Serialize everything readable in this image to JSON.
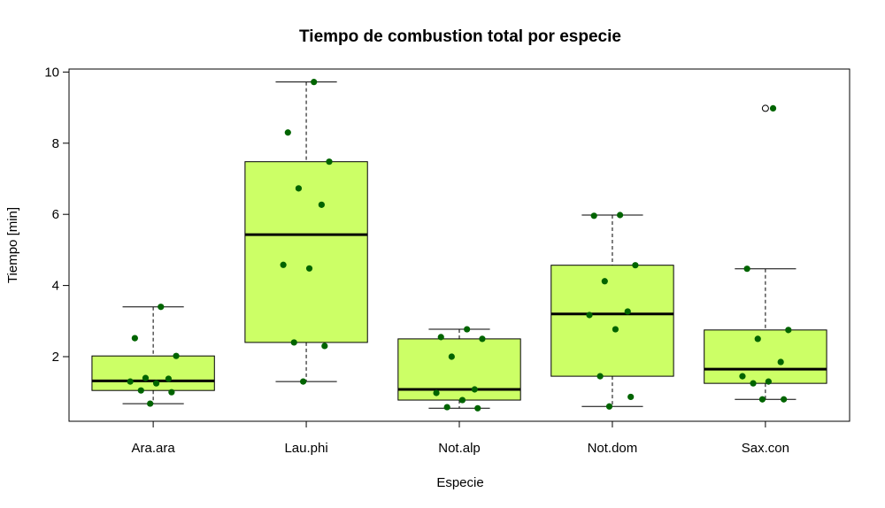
{
  "chart_data": {
    "type": "box",
    "title": "Tiempo de combustion total por especie",
    "xlabel": "Especie",
    "ylabel": "Tiempo [min]",
    "ylim": [
      0.2,
      10.1
    ],
    "yticks": [
      2,
      4,
      6,
      8,
      10
    ],
    "grid": false,
    "legend": "none",
    "colors": {
      "box_fill": "#ccff66",
      "points": "#006400",
      "median": "#000000",
      "outline": "#000000"
    },
    "categories": [
      "Ara.ara",
      "Lau.phi",
      "Not.alp",
      "Not.dom",
      "Sax.con"
    ],
    "boxes": [
      {
        "category": "Ara.ara",
        "whisker_low": 0.68,
        "q1": 1.05,
        "median": 1.32,
        "q3": 2.02,
        "whisker_high": 3.4,
        "outliers": []
      },
      {
        "category": "Lau.phi",
        "whisker_low": 1.3,
        "q1": 2.4,
        "median": 5.43,
        "q3": 7.48,
        "whisker_high": 9.72,
        "outliers": []
      },
      {
        "category": "Not.alp",
        "whisker_low": 0.55,
        "q1": 0.78,
        "median": 1.08,
        "q3": 2.5,
        "whisker_high": 2.77,
        "outliers": []
      },
      {
        "category": "Not.dom",
        "whisker_low": 0.6,
        "q1": 1.45,
        "median": 3.2,
        "q3": 4.57,
        "whisker_high": 5.98,
        "outliers": []
      },
      {
        "category": "Sax.con",
        "whisker_low": 0.8,
        "q1": 1.25,
        "median": 1.65,
        "q3": 2.75,
        "whisker_high": 4.47,
        "outliers": [
          8.98
        ]
      }
    ],
    "points": [
      {
        "category": "Ara.ara",
        "values": [
          3.4,
          2.52,
          2.02,
          1.4,
          1.38,
          1.3,
          1.25,
          1.05,
          1.0,
          0.68
        ]
      },
      {
        "category": "Lau.phi",
        "values": [
          9.72,
          8.3,
          7.48,
          6.73,
          6.27,
          4.58,
          4.48,
          2.4,
          2.3,
          1.3
        ]
      },
      {
        "category": "Not.alp",
        "values": [
          2.77,
          2.55,
          2.5,
          2.0,
          1.08,
          0.98,
          0.78,
          0.58,
          0.55
        ]
      },
      {
        "category": "Not.dom",
        "values": [
          5.98,
          5.96,
          4.57,
          4.12,
          3.27,
          3.17,
          2.77,
          1.45,
          0.87,
          0.6
        ]
      },
      {
        "category": "Sax.con",
        "values": [
          8.98,
          4.47,
          2.75,
          2.5,
          1.85,
          1.45,
          1.3,
          1.25,
          0.8,
          0.8
        ]
      }
    ]
  }
}
